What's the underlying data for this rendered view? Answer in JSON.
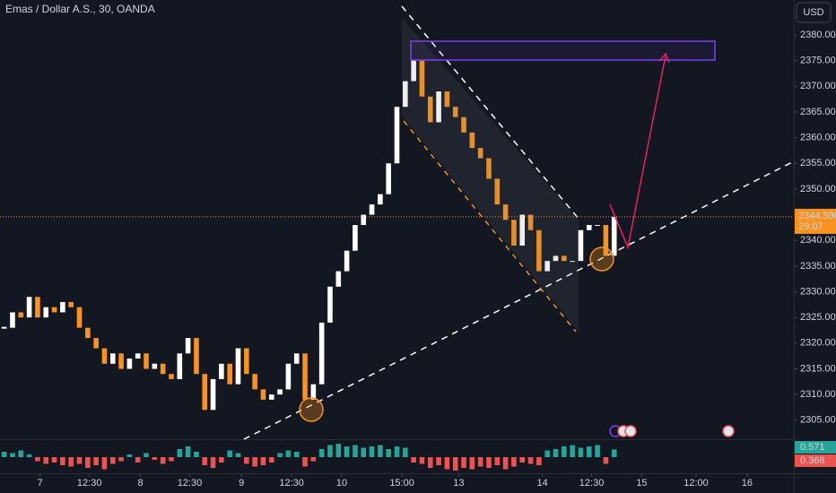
{
  "chart_data": {
    "type": "candlestick",
    "title": "Emas / Dollar A.S., 30, OANDA",
    "currency": "USD",
    "up_color": "#ffffff",
    "down_color": "#f7931e",
    "closes": [
      2323,
      2326,
      2325,
      2329,
      2325,
      2327,
      2326,
      2328,
      2327,
      2323,
      2321,
      2319,
      2316,
      2318,
      2315,
      2317,
      2318,
      2315,
      2316,
      2314,
      2313,
      2318,
      2321,
      2314,
      2307,
      2313,
      2316,
      2312,
      2319,
      2314,
      2311,
      2309,
      2310,
      2311,
      2316,
      2318,
      2309,
      2312,
      2324,
      2331,
      2334,
      2338,
      2343,
      2345,
      2347,
      2349,
      2355,
      2366,
      2371,
      2375,
      2368,
      2363,
      2369,
      2366,
      2364,
      2361,
      2358,
      2356,
      2352,
      2347,
      2344,
      2339,
      2345,
      2342,
      2334,
      2336,
      2337,
      2336,
      2336,
      2342,
      2343,
      2343,
      2337,
      2344.59
    ],
    "xlim": [
      0,
      95
    ],
    "xticks": [
      {
        "value": 4.8,
        "label": "7"
      },
      {
        "value": 10.7,
        "label": "12:30"
      },
      {
        "value": 16.8,
        "label": "8"
      },
      {
        "value": 22.7,
        "label": "12:30"
      },
      {
        "value": 28.9,
        "label": "9"
      },
      {
        "value": 34.9,
        "label": "12:30"
      },
      {
        "value": 40.9,
        "label": "10"
      },
      {
        "value": 48.1,
        "label": "15:00"
      },
      {
        "value": 54.9,
        "label": "13"
      },
      {
        "value": 64.9,
        "label": "14"
      },
      {
        "value": 70.8,
        "label": "12:30"
      },
      {
        "value": 76.8,
        "label": "15"
      },
      {
        "value": 83.3,
        "label": "12:00"
      },
      {
        "value": 89.4,
        "label": "16"
      }
    ],
    "ylim": [
      2301.3,
      2386.8
    ],
    "yticks": [
      {
        "value": 2305,
        "label": "2305.000"
      },
      {
        "value": 2310,
        "label": "2310.000"
      },
      {
        "value": 2315,
        "label": "2315.000"
      },
      {
        "value": 2320,
        "label": "2320.000"
      },
      {
        "value": 2325,
        "label": "2325.000"
      },
      {
        "value": 2330,
        "label": "2330.000"
      },
      {
        "value": 2335,
        "label": "2335.000"
      },
      {
        "value": 2340,
        "label": "2340.000"
      },
      {
        "value": 2345,
        "label": "2345.000"
      },
      {
        "value": 2350,
        "label": "2350.000"
      },
      {
        "value": 2355,
        "label": "2355.000"
      },
      {
        "value": 2360,
        "label": "2360.000"
      },
      {
        "value": 2365,
        "label": "2365.000"
      },
      {
        "value": 2370,
        "label": "2370.000"
      },
      {
        "value": 2375,
        "label": "2375.000"
      },
      {
        "value": 2380,
        "label": "2380.000"
      }
    ],
    "last_price_label": "2344.590",
    "countdown": "29:07",
    "indicator": {
      "up_color": "#26a69a",
      "down_color": "#ef5350",
      "labels": [
        "0.571",
        "0.368"
      ],
      "values": [
        0.4,
        0.3,
        0.5,
        0.2,
        -0.3,
        -0.5,
        -0.4,
        -0.6,
        -0.7,
        -0.5,
        -0.8,
        -0.6,
        -0.9,
        -0.5,
        -0.3,
        0.2,
        -0.4,
        0.3,
        -0.2,
        -0.5,
        -0.3,
        0.6,
        0.8,
        0.4,
        -0.6,
        -0.8,
        -0.4,
        0.5,
        0.3,
        -0.5,
        -0.7,
        -0.6,
        -0.4,
        0.3,
        0.5,
        0.4,
        -0.7,
        -0.3,
        0.6,
        0.9,
        1.0,
        0.8,
        0.9,
        0.7,
        0.8,
        0.9,
        0.6,
        0.8,
        0.7,
        -0.4,
        -0.5,
        -0.8,
        -0.6,
        -0.9,
        -1.0,
        -0.8,
        -0.9,
        -0.7,
        -0.8,
        -0.6,
        -0.9,
        -0.7,
        -0.4,
        -0.5,
        -0.6,
        0.5,
        0.6,
        0.8,
        0.9,
        0.7,
        0.8,
        0.9,
        -0.5,
        0.57
      ]
    }
  }
}
